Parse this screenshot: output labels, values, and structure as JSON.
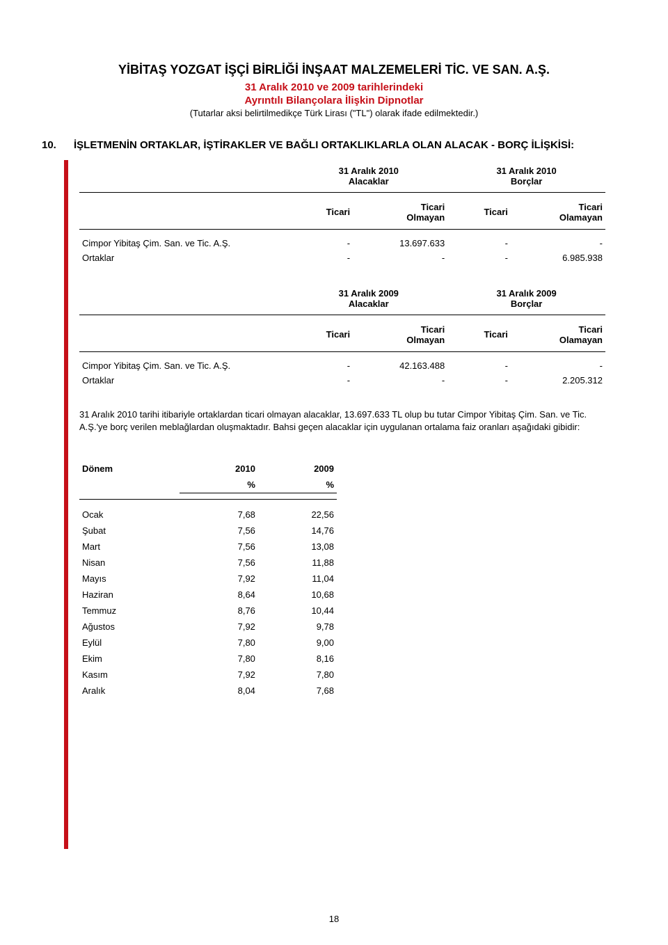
{
  "header": {
    "company": "YİBİTAŞ YOZGAT İŞÇİ BİRLİĞİ İNŞAAT MALZEMELERİ TİC. VE SAN. A.Ş.",
    "line1": "31 Aralık 2010 ve 2009 tarihlerindeki",
    "line2": "Ayrıntılı Bilançolara İlişkin Dipnotlar",
    "note": "(Tutarlar aksi belirtilmedikçe Türk Lirası (\"TL\") olarak ifade edilmektedir.)"
  },
  "section": {
    "num": "10.",
    "title": "İŞLETMENİN ORTAKLAR, İŞTİRAKLER VE BAĞLI ORTAKLIKLARLA OLAN ALACAK - BORÇ İLİŞKİSİ:"
  },
  "tables": {
    "t2010": {
      "head_left": "31 Aralık 2010",
      "head_left_sub": "Alacaklar",
      "head_right": "31 Aralık 2010",
      "head_right_sub": "Borçlar",
      "cols": {
        "c1": "Ticari",
        "c2a": "Ticari",
        "c2b": "Olmayan",
        "c3": "Ticari",
        "c4a": "Ticari",
        "c4b": "Olamayan"
      },
      "rows": [
        {
          "label": "Cimpor Yibitaş Çim. San. ve Tic. A.Ş.",
          "c1": "-",
          "c2": "13.697.633",
          "c3": "-",
          "c4": "-"
        },
        {
          "label": "Ortaklar",
          "c1": "-",
          "c2": "-",
          "c3": "-",
          "c4": "6.985.938"
        }
      ]
    },
    "t2009": {
      "head_left": "31 Aralık 2009",
      "head_left_sub": "Alacaklar",
      "head_right": "31 Aralık 2009",
      "head_right_sub": "Borçlar",
      "cols": {
        "c1": "Ticari",
        "c2a": "Ticari",
        "c2b": "Olmayan",
        "c3": "Ticari",
        "c4a": "Ticari",
        "c4b": "Olamayan"
      },
      "rows": [
        {
          "label": "Cimpor Yibitaş Çim. San. ve Tic. A.Ş.",
          "c1": "-",
          "c2": "42.163.488",
          "c3": "-",
          "c4": "-"
        },
        {
          "label": "Ortaklar",
          "c1": "-",
          "c2": "-",
          "c3": "-",
          "c4": "2.205.312"
        }
      ]
    }
  },
  "paragraph": "31 Aralık 2010 tarihi itibariyle ortaklardan ticari olmayan alacaklar, 13.697.633 TL olup bu tutar Cimpor Yibitaş Çim. San. ve Tic. A.Ş.'ye borç verilen meblağlardan oluşmaktadır. Bahsi geçen alacaklar için uygulanan ortalama faiz oranları aşağıdaki gibidir:",
  "rate_table": {
    "head": {
      "donem": "Dönem",
      "y2010": "2010",
      "y2009": "2009",
      "pct": "%"
    },
    "rows": [
      {
        "m": "Ocak",
        "a": "7,68",
        "b": "22,56"
      },
      {
        "m": "Şubat",
        "a": "7,56",
        "b": "14,76"
      },
      {
        "m": "Mart",
        "a": "7,56",
        "b": "13,08"
      },
      {
        "m": "Nisan",
        "a": "7,56",
        "b": "11,88"
      },
      {
        "m": "Mayıs",
        "a": "7,92",
        "b": "11,04"
      },
      {
        "m": "Haziran",
        "a": "8,64",
        "b": "10,68"
      },
      {
        "m": "Temmuz",
        "a": "8,76",
        "b": "10,44"
      },
      {
        "m": "Ağustos",
        "a": "7,92",
        "b": "9,78"
      },
      {
        "m": "Eylül",
        "a": "7,80",
        "b": "9,00"
      },
      {
        "m": "Ekim",
        "a": "7,80",
        "b": "8,16"
      },
      {
        "m": "Kasım",
        "a": "7,92",
        "b": "7,80"
      },
      {
        "m": "Aralık",
        "a": "8,04",
        "b": "7,68"
      }
    ]
  },
  "page_number": "18"
}
